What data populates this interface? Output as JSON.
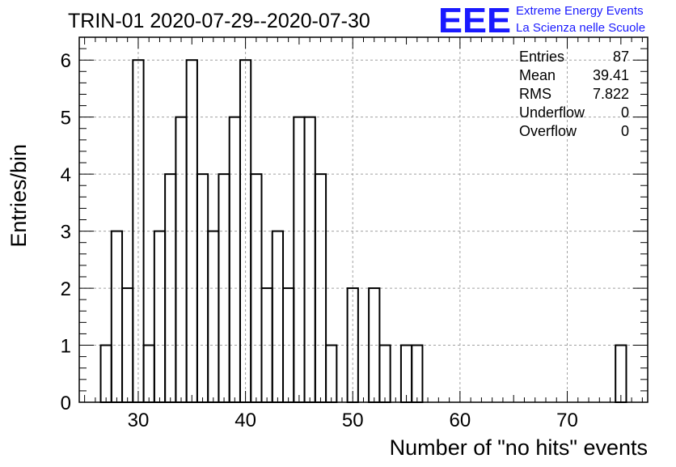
{
  "header": {
    "title": "TRIN-01 2020-07-29--2020-07-30",
    "logo_text": "EEE",
    "logo_line1": "Extreme Energy Events",
    "logo_line2": "La Scienza nelle Scuole"
  },
  "stats": {
    "rows": [
      {
        "label": "Entries",
        "value": "87"
      },
      {
        "label": "Mean",
        "value": "39.41"
      },
      {
        "label": "RMS",
        "value": "7.822"
      },
      {
        "label": "Underflow",
        "value": "0"
      },
      {
        "label": "Overflow",
        "value": "0"
      }
    ]
  },
  "colors": {
    "logo": "#1a1aff",
    "histogram": "#000000",
    "grid": "#a0a0a0"
  },
  "chart_data": {
    "type": "bar",
    "title": "TRIN-01 2020-07-29--2020-07-30",
    "xlabel": "Number of \"no hits\" events",
    "ylabel": "Entries/bin",
    "xlim": [
      24.5,
      77.5
    ],
    "ylim": [
      0,
      6.4
    ],
    "bin_width": 1,
    "grid": true,
    "x_ticks": [
      "30",
      "40",
      "50",
      "60",
      "70"
    ],
    "y_ticks": [
      "0",
      "1",
      "2",
      "3",
      "4",
      "5",
      "6"
    ],
    "bins": [
      {
        "x": 27,
        "y": 1
      },
      {
        "x": 28,
        "y": 3
      },
      {
        "x": 29,
        "y": 2
      },
      {
        "x": 30,
        "y": 6
      },
      {
        "x": 31,
        "y": 1
      },
      {
        "x": 32,
        "y": 3
      },
      {
        "x": 33,
        "y": 4
      },
      {
        "x": 34,
        "y": 5
      },
      {
        "x": 35,
        "y": 6
      },
      {
        "x": 36,
        "y": 4
      },
      {
        "x": 37,
        "y": 3
      },
      {
        "x": 38,
        "y": 4
      },
      {
        "x": 39,
        "y": 5
      },
      {
        "x": 40,
        "y": 6
      },
      {
        "x": 41,
        "y": 4
      },
      {
        "x": 42,
        "y": 2
      },
      {
        "x": 43,
        "y": 3
      },
      {
        "x": 44,
        "y": 2
      },
      {
        "x": 45,
        "y": 5
      },
      {
        "x": 46,
        "y": 5
      },
      {
        "x": 47,
        "y": 4
      },
      {
        "x": 48,
        "y": 1
      },
      {
        "x": 50,
        "y": 2
      },
      {
        "x": 52,
        "y": 2
      },
      {
        "x": 53,
        "y": 1
      },
      {
        "x": 55,
        "y": 1
      },
      {
        "x": 56,
        "y": 1
      },
      {
        "x": 75,
        "y": 1
      }
    ]
  }
}
